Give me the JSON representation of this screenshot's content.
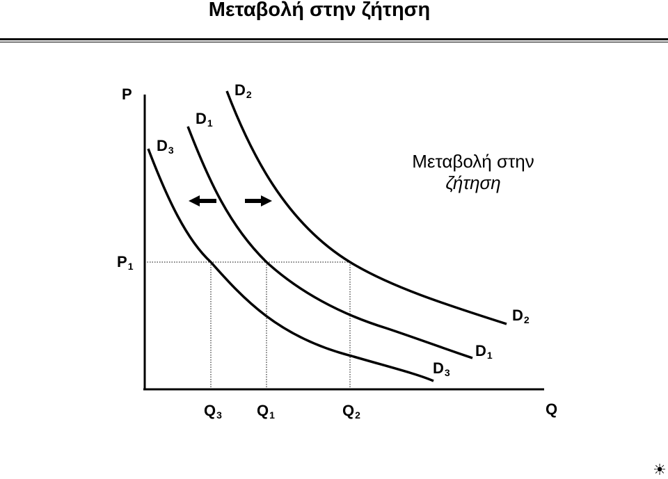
{
  "title": "Μεταβολή στην ζήτηση",
  "annotation": {
    "line1": "Μεταβολή στην",
    "line2": "ζήτηση"
  },
  "axes": {
    "y_label": "P",
    "x_label": "Q"
  },
  "curves": {
    "d1": {
      "letter": "D",
      "sub": "1"
    },
    "d2": {
      "letter": "D",
      "sub": "2"
    },
    "d3": {
      "letter": "D",
      "sub": "3"
    }
  },
  "price_level": {
    "letter": "P",
    "sub": "1"
  },
  "quantities": {
    "q3": {
      "letter": "Q",
      "sub": "3"
    },
    "q1": {
      "letter": "Q",
      "sub": "1"
    },
    "q2": {
      "letter": "Q",
      "sub": "2"
    }
  },
  "icons": {
    "left_arrow": "left-arrow-icon",
    "right_arrow": "right-arrow-icon",
    "corner": "sun-icon"
  }
}
